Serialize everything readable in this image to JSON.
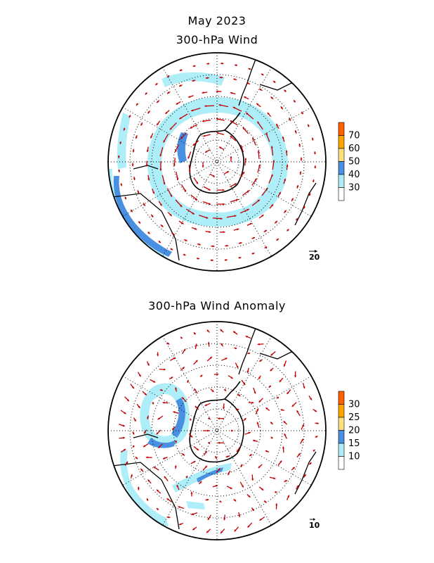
{
  "header": {
    "date": "May 2023",
    "top_title": "300-hPa Wind",
    "bottom_title": "300-hPa Wind Anomaly"
  },
  "maps": [
    {
      "projection": "south polar stereographic",
      "shading_levels": [
        30,
        40,
        50,
        60,
        70
      ],
      "shading_colors": [
        "#ffffff",
        "#aeeef8",
        "#4a90e2",
        "#ffe080",
        "#ffa500",
        "#ff6000"
      ],
      "colorbar_labels": [
        "70",
        "60",
        "50",
        "40",
        "30"
      ],
      "reference_vector_label": "20",
      "vector_color": "#c00000"
    },
    {
      "projection": "south polar stereographic",
      "shading_levels": [
        10,
        15,
        20,
        25,
        30
      ],
      "shading_colors": [
        "#ffffff",
        "#aeeef8",
        "#4a90e2",
        "#ffe080",
        "#ffa500",
        "#ff6000"
      ],
      "colorbar_labels": [
        "30",
        "25",
        "20",
        "15",
        "10"
      ],
      "reference_vector_label": "10",
      "vector_color": "#c00000"
    }
  ]
}
